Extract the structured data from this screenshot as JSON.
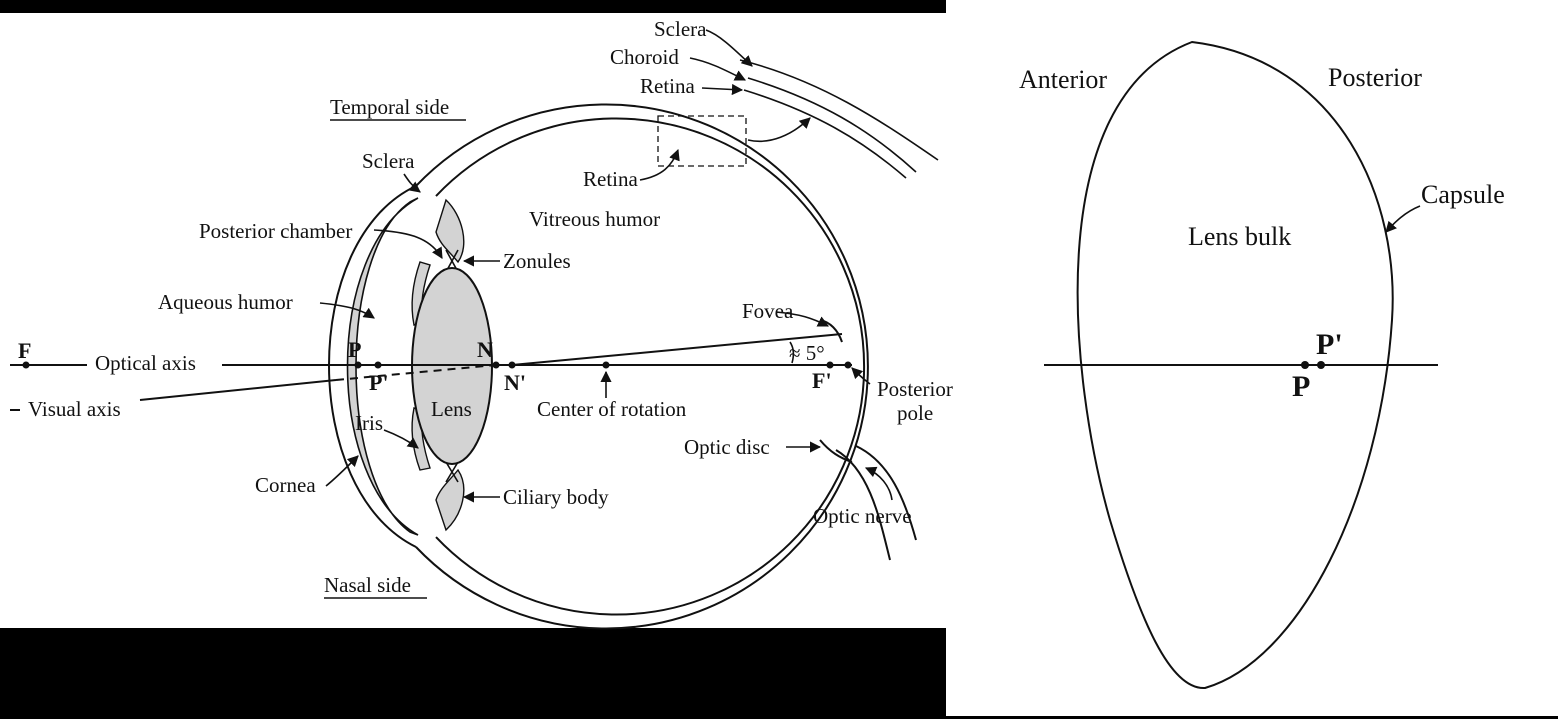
{
  "left_panel": {
    "temporal_side": "Temporal side",
    "nasal_side": "Nasal side",
    "sclera_inset": "Sclera",
    "choroid": "Choroid",
    "retina_inset": "Retina",
    "retina": "Retina",
    "sclera": "Sclera",
    "vitreous_humor": "Vitreous humor",
    "posterior_chamber": "Posterior chamber",
    "zonules": "Zonules",
    "aqueous_humor": "Aqueous humor",
    "fovea": "Fovea",
    "optical_axis": "Optical axis",
    "visual_axis": "Visual axis",
    "angle": "≈ 5°",
    "lens": "Lens",
    "iris": "Iris",
    "center_of_rotation": "Center of rotation",
    "posterior_pole_line1": "Posterior",
    "posterior_pole_line2": "pole",
    "optic_disc": "Optic disc",
    "cornea": "Cornea",
    "ciliary_body": "Ciliary body",
    "optic_nerve": "Optic nerve",
    "point_F": "F",
    "point_P": "P",
    "point_P_prime": "P'",
    "point_N": "N",
    "point_N_prime": "N'",
    "point_F_prime": "F'"
  },
  "right_panel": {
    "anterior": "Anterior",
    "posterior": "Posterior",
    "capsule": "Capsule",
    "lens_bulk": "Lens bulk",
    "point_P": "P",
    "point_P_prime": "P'"
  },
  "colors": {
    "band": "#000000",
    "tissue_fill": "#d3d3d3",
    "ink": "#111111"
  }
}
